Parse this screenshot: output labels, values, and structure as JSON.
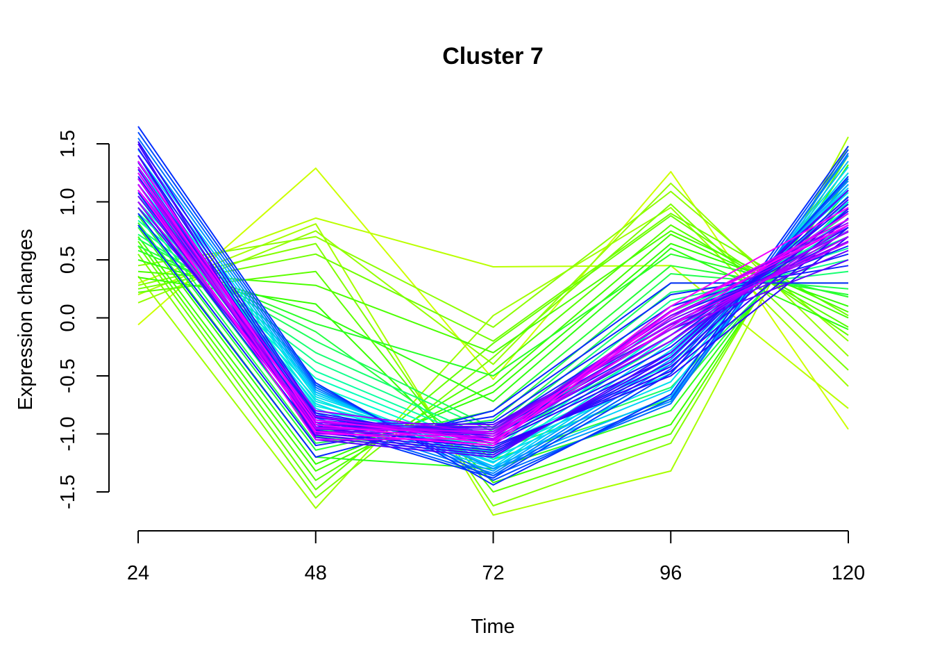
{
  "chart_data": {
    "type": "line",
    "title": "Cluster 7",
    "xlabel": "Time",
    "ylabel": "Expression changes",
    "x": [
      24,
      48,
      72,
      96,
      120
    ],
    "x_tick_labels": [
      "24",
      "48",
      "72",
      "96",
      "120"
    ],
    "y_ticks": [
      -1.5,
      -1.0,
      -0.5,
      0.0,
      0.5,
      1.0,
      1.5
    ],
    "y_tick_labels": [
      "-1.5",
      "-1.0",
      "-0.5",
      "0.0",
      "0.5",
      "1.0",
      "1.5"
    ],
    "ylim": [
      -1.65,
      1.65
    ],
    "grid": false,
    "legend": "none",
    "color_scale": [
      "#ccff00",
      "#33ff00",
      "#00ffcc",
      "#00ccff",
      "#0033ff",
      "#3300ff",
      "#ff00ff"
    ],
    "series": [
      {
        "membership": 0.0,
        "values": [
          -0.06,
          1.29,
          -0.53,
          1.26,
          -0.96
        ]
      },
      {
        "membership": 0.02,
        "values": [
          0.3,
          0.86,
          0.44,
          0.45,
          -0.78
        ]
      },
      {
        "membership": 0.04,
        "values": [
          0.2,
          0.81,
          -1.7,
          -1.32,
          1.56
        ]
      },
      {
        "membership": 0.05,
        "values": [
          0.36,
          -1.64,
          0.02,
          0.95,
          -0.59
        ]
      },
      {
        "membership": 0.06,
        "values": [
          0.13,
          0.75,
          -0.4,
          1.16,
          -0.33
        ]
      },
      {
        "membership": 0.07,
        "values": [
          0.45,
          0.7,
          -0.08,
          1.09,
          -0.2
        ]
      },
      {
        "membership": 0.08,
        "values": [
          0.28,
          0.64,
          -1.62,
          -1.08,
          1.48
        ]
      },
      {
        "membership": 0.09,
        "values": [
          0.55,
          -1.55,
          -0.34,
          0.98,
          -0.45
        ]
      },
      {
        "membership": 0.1,
        "values": [
          0.25,
          0.55,
          -0.2,
          0.9,
          0.02
        ]
      },
      {
        "membership": 0.11,
        "values": [
          0.62,
          -1.48,
          -0.22,
          0.88,
          -0.15
        ]
      },
      {
        "membership": 0.12,
        "values": [
          0.22,
          0.4,
          -1.5,
          -1.0,
          1.4
        ]
      },
      {
        "membership": 0.13,
        "values": [
          0.66,
          -1.4,
          -0.46,
          0.8,
          -0.08
        ]
      },
      {
        "membership": 0.14,
        "values": [
          0.4,
          0.28,
          -0.3,
          0.75,
          0.05
        ]
      },
      {
        "membership": 0.15,
        "values": [
          0.7,
          -1.32,
          -0.58,
          0.72,
          0.0
        ]
      },
      {
        "membership": 0.16,
        "values": [
          0.35,
          0.12,
          -1.42,
          -0.92,
          1.32
        ]
      },
      {
        "membership": 0.17,
        "values": [
          0.78,
          -1.26,
          -0.64,
          0.64,
          0.1
        ]
      },
      {
        "membership": 0.18,
        "values": [
          0.5,
          0.05,
          -0.72,
          0.6,
          -0.1
        ]
      },
      {
        "membership": 0.19,
        "values": [
          0.82,
          -1.2,
          -1.3,
          -0.8,
          1.2
        ]
      },
      {
        "membership": 0.2,
        "values": [
          0.58,
          -0.05,
          -0.5,
          0.55,
          0.18
        ]
      },
      {
        "membership": 0.21,
        "values": [
          0.88,
          -1.14,
          -0.8,
          0.45,
          0.2
        ]
      },
      {
        "membership": 0.22,
        "values": [
          0.62,
          -0.12,
          -1.22,
          -0.7,
          1.1
        ]
      },
      {
        "membership": 0.23,
        "values": [
          0.95,
          -1.08,
          -0.88,
          0.38,
          0.25
        ]
      },
      {
        "membership": 0.24,
        "values": [
          0.68,
          -0.2,
          -0.95,
          0.3,
          0.3
        ]
      },
      {
        "membership": 0.25,
        "values": [
          1.0,
          -1.02,
          -1.15,
          -0.6,
          1.0
        ]
      },
      {
        "membership": 0.26,
        "values": [
          0.72,
          -0.3,
          -0.98,
          0.22,
          0.4
        ]
      },
      {
        "membership": 0.27,
        "values": [
          1.05,
          -0.96,
          -1.08,
          -0.2,
          0.9
        ]
      },
      {
        "membership": 0.28,
        "values": [
          0.78,
          -0.38,
          -1.05,
          0.15,
          0.5
        ]
      },
      {
        "membership": 0.29,
        "values": [
          1.1,
          -0.9,
          -1.0,
          0.05,
          0.7
        ]
      },
      {
        "membership": 0.3,
        "values": [
          0.84,
          -0.46,
          -1.1,
          0.1,
          0.6
        ]
      },
      {
        "membership": 0.31,
        "values": [
          1.15,
          -0.85,
          -1.02,
          -0.1,
          0.8
        ]
      },
      {
        "membership": 0.32,
        "values": [
          0.9,
          -0.52,
          -1.14,
          0.0,
          0.75
        ]
      },
      {
        "membership": 0.33,
        "values": [
          1.2,
          -0.8,
          -1.06,
          -0.3,
          0.95
        ]
      },
      {
        "membership": 0.34,
        "values": [
          0.95,
          -0.58,
          -1.18,
          -0.08,
          0.85
        ]
      },
      {
        "membership": 0.36,
        "values": [
          1.25,
          -0.76,
          -1.12,
          -0.4,
          1.05
        ]
      },
      {
        "membership": 0.38,
        "values": [
          1.0,
          -0.64,
          -1.22,
          -0.15,
          0.92
        ]
      },
      {
        "membership": 0.4,
        "values": [
          1.3,
          -0.72,
          -1.16,
          -0.48,
          1.15
        ]
      },
      {
        "membership": 0.42,
        "values": [
          1.05,
          -0.7,
          -1.25,
          -0.22,
          1.0
        ]
      },
      {
        "membership": 0.44,
        "values": [
          1.35,
          -0.68,
          -1.2,
          -0.55,
          1.25
        ]
      },
      {
        "membership": 0.46,
        "values": [
          1.1,
          -0.74,
          -1.28,
          -0.28,
          1.08
        ]
      },
      {
        "membership": 0.48,
        "values": [
          1.4,
          -0.66,
          -1.24,
          -0.62,
          1.3
        ]
      },
      {
        "membership": 0.5,
        "values": [
          1.15,
          -0.78,
          -1.3,
          -0.32,
          1.12
        ]
      },
      {
        "membership": 0.52,
        "values": [
          1.45,
          -0.64,
          -1.28,
          -0.68,
          1.35
        ]
      },
      {
        "membership": 0.54,
        "values": [
          1.2,
          -0.82,
          -1.32,
          -0.36,
          1.15
        ]
      },
      {
        "membership": 0.56,
        "values": [
          1.5,
          -0.62,
          -1.3,
          -0.72,
          1.4
        ]
      },
      {
        "membership": 0.58,
        "values": [
          1.25,
          -0.86,
          -1.34,
          -0.4,
          1.18
        ]
      },
      {
        "membership": 0.6,
        "values": [
          1.55,
          -0.6,
          -1.36,
          -0.74,
          1.42
        ]
      },
      {
        "membership": 0.62,
        "values": [
          1.3,
          -0.9,
          -1.36,
          -0.44,
          1.2
        ]
      },
      {
        "membership": 0.64,
        "values": [
          1.6,
          -0.58,
          -1.4,
          -0.7,
          1.45
        ]
      },
      {
        "membership": 0.66,
        "values": [
          1.35,
          -0.92,
          -1.38,
          -0.48,
          1.22
        ]
      },
      {
        "membership": 0.68,
        "values": [
          1.65,
          -0.56,
          -1.44,
          -0.66,
          1.48
        ]
      },
      {
        "membership": 0.7,
        "values": [
          0.8,
          -1.2,
          -0.8,
          0.3,
          0.3
        ]
      },
      {
        "membership": 0.71,
        "values": [
          0.9,
          -1.1,
          -0.85,
          0.2,
          0.45
        ]
      },
      {
        "membership": 0.72,
        "values": [
          1.0,
          -1.0,
          -0.9,
          0.1,
          0.55
        ]
      },
      {
        "membership": 0.73,
        "values": [
          1.08,
          -0.96,
          -0.94,
          0.02,
          0.62
        ]
      },
      {
        "membership": 0.74,
        "values": [
          1.15,
          -0.94,
          -0.96,
          -0.05,
          0.7
        ]
      },
      {
        "membership": 0.75,
        "values": [
          1.22,
          -0.92,
          -0.98,
          -0.1,
          0.78
        ]
      },
      {
        "membership": 0.76,
        "values": [
          1.28,
          -0.9,
          -1.0,
          -0.15,
          0.85
        ]
      },
      {
        "membership": 0.77,
        "values": [
          1.34,
          -0.88,
          -1.02,
          -0.2,
          0.92
        ]
      },
      {
        "membership": 0.78,
        "values": [
          1.4,
          -0.86,
          -1.04,
          -0.25,
          0.98
        ]
      },
      {
        "membership": 0.79,
        "values": [
          1.46,
          -0.84,
          -1.06,
          -0.3,
          1.04
        ]
      },
      {
        "membership": 0.8,
        "values": [
          1.52,
          -0.82,
          -1.08,
          -0.34,
          1.1
        ]
      },
      {
        "membership": 0.81,
        "values": [
          1.0,
          -0.95,
          -1.1,
          -0.5,
          0.7
        ]
      },
      {
        "membership": 0.82,
        "values": [
          1.1,
          -0.97,
          -1.12,
          -0.46,
          0.78
        ]
      },
      {
        "membership": 0.83,
        "values": [
          1.2,
          -0.99,
          -1.14,
          -0.42,
          0.86
        ]
      },
      {
        "membership": 0.84,
        "values": [
          1.3,
          -1.01,
          -1.16,
          -0.38,
          0.94
        ]
      },
      {
        "membership": 0.85,
        "values": [
          1.4,
          -1.03,
          -1.18,
          -0.34,
          1.02
        ]
      },
      {
        "membership": 0.86,
        "values": [
          1.5,
          -1.05,
          -1.2,
          -0.3,
          1.1
        ]
      },
      {
        "membership": 0.87,
        "values": [
          0.95,
          -0.9,
          -0.92,
          -0.1,
          0.5
        ]
      },
      {
        "membership": 0.88,
        "values": [
          1.05,
          -0.92,
          -0.94,
          -0.06,
          0.58
        ]
      },
      {
        "membership": 0.89,
        "values": [
          1.15,
          -0.94,
          -0.96,
          -0.02,
          0.66
        ]
      },
      {
        "membership": 0.9,
        "values": [
          1.25,
          -0.96,
          -0.98,
          0.02,
          0.74
        ]
      },
      {
        "membership": 0.91,
        "values": [
          1.35,
          -0.98,
          -1.0,
          0.06,
          0.82
        ]
      },
      {
        "membership": 0.92,
        "values": [
          1.2,
          -0.8,
          -1.0,
          -0.2,
          0.8
        ]
      },
      {
        "membership": 0.93,
        "values": [
          1.1,
          -0.85,
          -1.05,
          -0.15,
          0.75
        ]
      },
      {
        "membership": 0.94,
        "values": [
          1.0,
          -0.9,
          -1.0,
          -0.1,
          0.7
        ]
      },
      {
        "membership": 0.95,
        "values": [
          1.2,
          -0.95,
          -0.98,
          -0.05,
          0.65
        ]
      },
      {
        "membership": 0.96,
        "values": [
          1.3,
          -1.0,
          -1.02,
          0.0,
          0.8
        ]
      },
      {
        "membership": 0.97,
        "values": [
          1.15,
          -1.05,
          -1.04,
          0.05,
          0.85
        ]
      },
      {
        "membership": 0.98,
        "values": [
          1.25,
          -0.88,
          -1.06,
          -0.08,
          0.9
        ]
      },
      {
        "membership": 0.99,
        "values": [
          1.35,
          -0.92,
          -1.08,
          0.1,
          0.95
        ]
      },
      {
        "membership": 1.0,
        "values": [
          1.1,
          -0.98,
          -1.1,
          0.05,
          0.8
        ]
      }
    ]
  }
}
